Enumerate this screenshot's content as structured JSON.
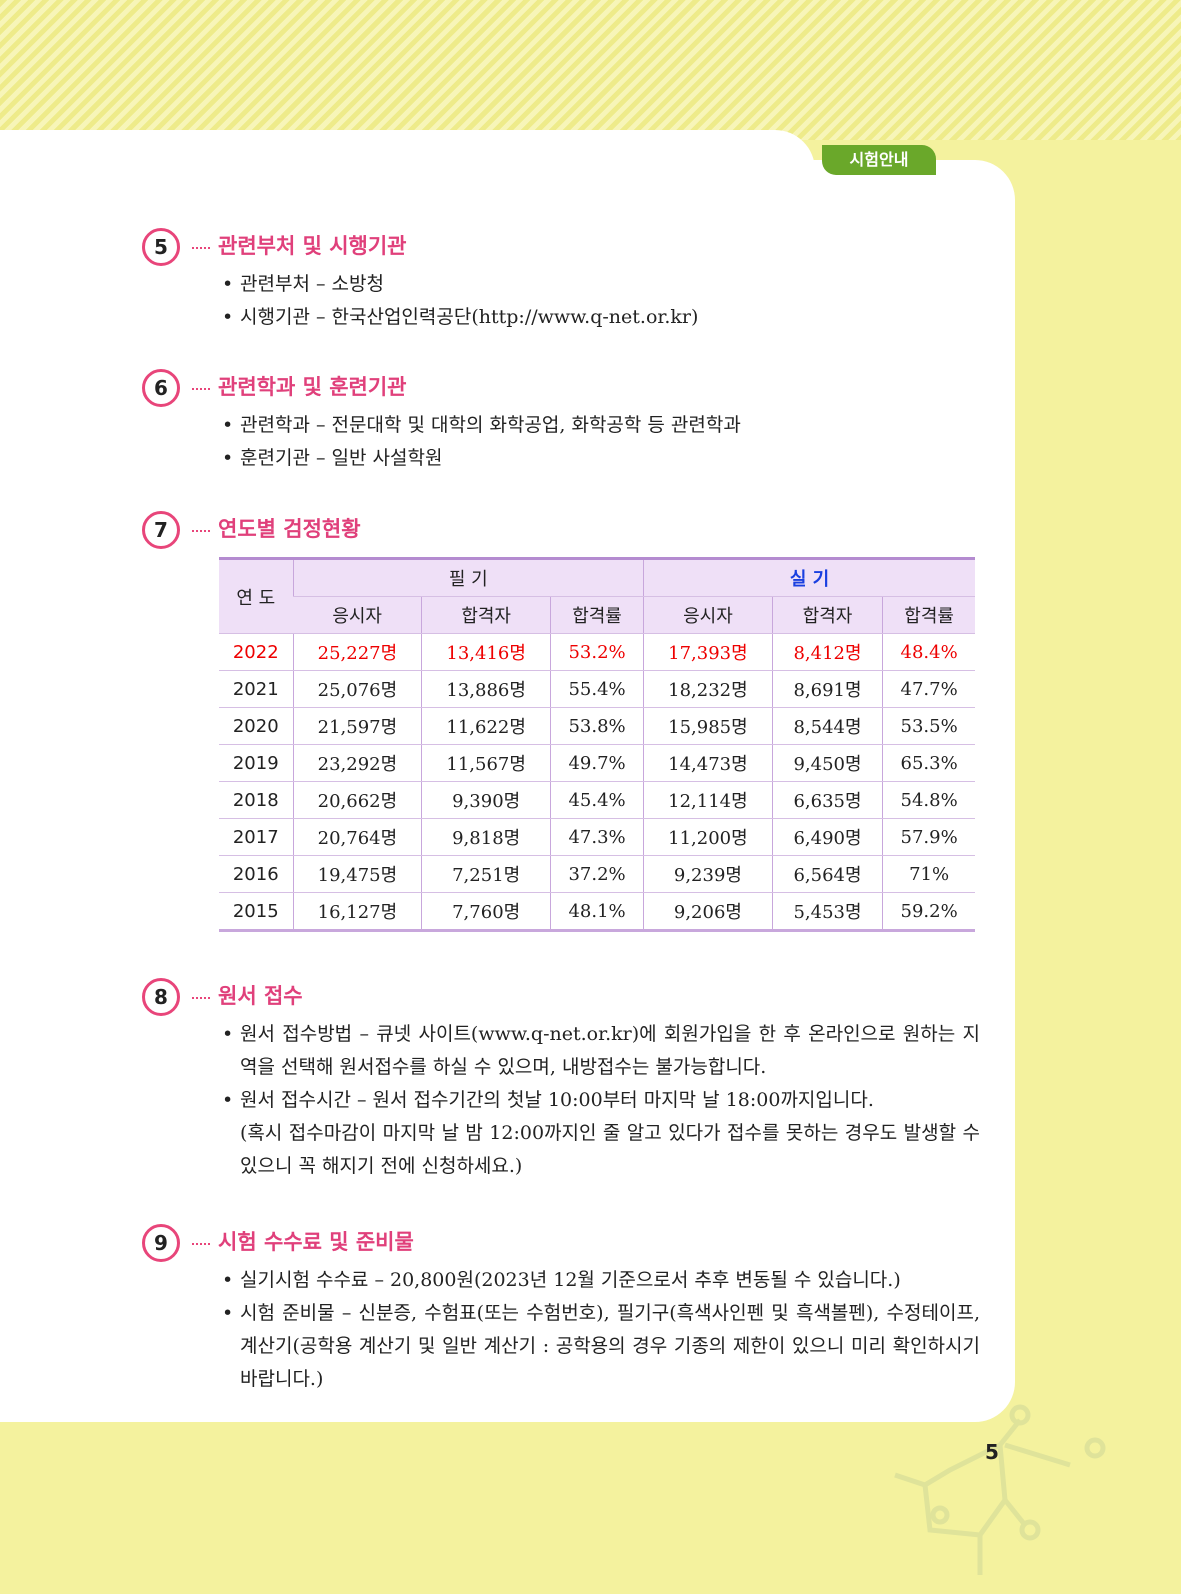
{
  "tab": "시험안내",
  "sections": [
    {
      "number": "5",
      "title": "관련부처 및 시행기관",
      "items": [
        {
          "text": "관련부처 – 소방청"
        },
        {
          "text": "시행기관 – 한국산업인력공단(http://www.q-net.or.kr)"
        }
      ]
    },
    {
      "number": "6",
      "title": "관련학과 및 훈련기관",
      "items": [
        {
          "text": "관련학과 – 전문대학 및 대학의 화학공업, 화학공학 등 관련학과"
        },
        {
          "text": "훈련기관 – 일반 사설학원"
        }
      ]
    },
    {
      "number": "7",
      "title": "연도별 검정현황",
      "table": {
        "year_header": "연 도",
        "group_headers": [
          "필 기",
          "실 기"
        ],
        "sub_headers": [
          "응시자",
          "합격자",
          "합격률",
          "응시자",
          "합격자",
          "합격률"
        ],
        "rows": [
          [
            "2022",
            "25,227명",
            "13,416명",
            "53.2%",
            "17,393명",
            "8,412명",
            "48.4%"
          ],
          [
            "2021",
            "25,076명",
            "13,886명",
            "55.4%",
            "18,232명",
            "8,691명",
            "47.7%"
          ],
          [
            "2020",
            "21,597명",
            "11,622명",
            "53.8%",
            "15,985명",
            "8,544명",
            "53.5%"
          ],
          [
            "2019",
            "23,292명",
            "11,567명",
            "49.7%",
            "14,473명",
            "9,450명",
            "65.3%"
          ],
          [
            "2018",
            "20,662명",
            "9,390명",
            "45.4%",
            "12,114명",
            "6,635명",
            "54.8%"
          ],
          [
            "2017",
            "20,764명",
            "9,818명",
            "47.3%",
            "11,200명",
            "6,490명",
            "57.9%"
          ],
          [
            "2016",
            "19,475명",
            "7,251명",
            "37.2%",
            "9,239명",
            "6,564명",
            "71%"
          ],
          [
            "2015",
            "16,127명",
            "7,760명",
            "48.1%",
            "9,206명",
            "5,453명",
            "59.2%"
          ]
        ]
      }
    },
    {
      "number": "8",
      "title": "원서 접수",
      "items": [
        {
          "text": "원서 접수방법 – 큐넷 사이트(www.q-net.or.kr)에 회원가입을 한 후 온라인으로 원하는 지역을 선택해 원서접수를 하실 수 있으며, 내방접수는 불가능합니다."
        },
        {
          "text": "원서 접수시간 – 원서 접수기간의 첫날 10:00부터 마지막 날 18:00까지입니다.",
          "note": "(혹시 접수마감이 마지막 날 밤 12:00까지인 줄 알고 있다가 접수를 못하는 경우도 발생할 수 있으니 꼭 해지기 전에 신청하세요.)"
        }
      ]
    },
    {
      "number": "9",
      "title": "시험 수수료 및 준비물",
      "items": [
        {
          "text": "실기시험 수수료 – 20,800원(2023년 12월 기준으로서 추후 변동될 수 있습니다.)"
        },
        {
          "text": "시험 준비물 – 신분증, 수험표(또는 수험번호), 필기구(흑색사인펜 및 흑색볼펜), 수정테이프, 계산기(공학용 계산기 및 일반 계산기 : 공학용의 경우 기종의 제한이 있으니 미리 확인하시기 바랍니다.)"
        }
      ]
    }
  ],
  "page_number": "5"
}
